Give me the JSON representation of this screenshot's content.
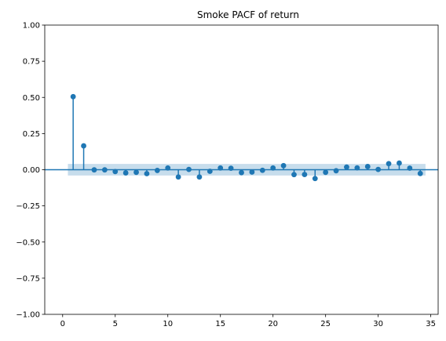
{
  "chart_data": {
    "type": "scatter",
    "title": "Smoke PACF of return",
    "xlabel": "",
    "ylabel": "",
    "xlim": [
      -1.7,
      35.7
    ],
    "ylim": [
      -1.0,
      1.0
    ],
    "x_ticks": [
      0,
      5,
      10,
      15,
      20,
      25,
      30,
      35
    ],
    "x_tick_labels": [
      "0",
      "5",
      "10",
      "15",
      "20",
      "25",
      "30",
      "35"
    ],
    "y_ticks": [
      1.0,
      0.75,
      0.5,
      0.25,
      0.0,
      -0.25,
      -0.5,
      -0.75,
      -1.0
    ],
    "y_tick_labels": [
      "1.00",
      "0.75",
      "0.50",
      "0.25",
      "0.00",
      "−0.25",
      "−0.50",
      "−0.75",
      "−1.00"
    ],
    "grid": false,
    "colors": {
      "series": "#1f77b4",
      "band": "#1f77b4"
    },
    "confidence_band": {
      "x_range": [
        0.5,
        34.5
      ],
      "half_width": 0.04
    },
    "lags": [
      1,
      2,
      3,
      4,
      5,
      6,
      7,
      8,
      9,
      10,
      11,
      12,
      13,
      14,
      15,
      16,
      17,
      18,
      19,
      20,
      21,
      22,
      23,
      24,
      25,
      26,
      27,
      28,
      29,
      30,
      31,
      32,
      33,
      34
    ],
    "values": [
      0.505,
      0.165,
      -0.001,
      -0.001,
      -0.013,
      -0.022,
      -0.018,
      -0.027,
      -0.005,
      0.012,
      -0.05,
      0.002,
      -0.05,
      -0.011,
      0.012,
      0.01,
      -0.02,
      -0.016,
      -0.004,
      0.012,
      0.028,
      -0.034,
      -0.033,
      -0.061,
      -0.018,
      -0.007,
      0.018,
      0.013,
      0.022,
      0.002,
      0.042,
      0.046,
      0.011,
      -0.026
    ]
  }
}
